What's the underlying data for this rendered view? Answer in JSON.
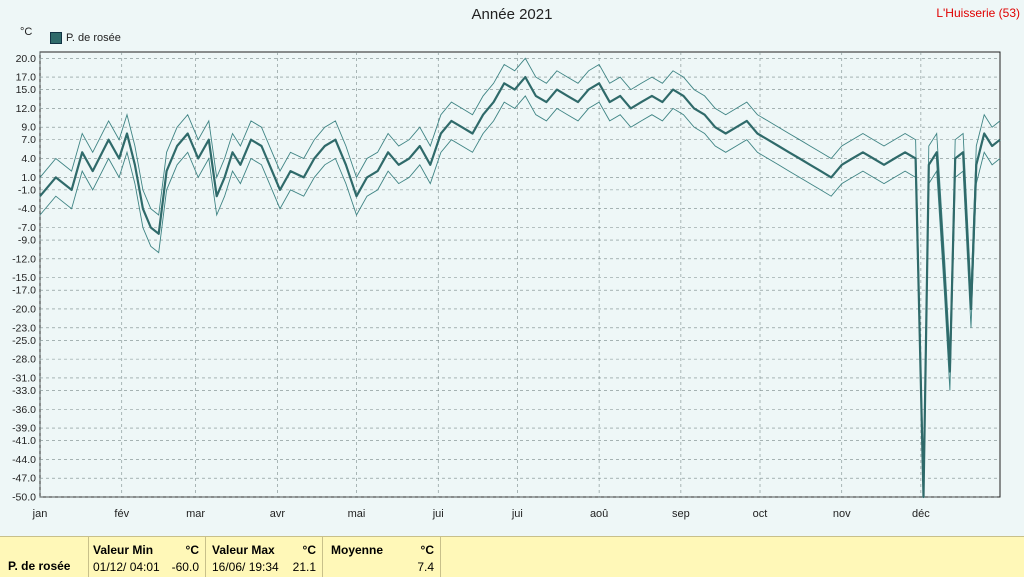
{
  "title": "Année 2021",
  "location": "L'Huisserie (53)",
  "unit": "°C",
  "legend_label": "P. de rosée",
  "colors": {
    "series": "#2f6a6a",
    "envelope": "#3f8484",
    "grid": "#7a8a8a",
    "background": "#eef7f7",
    "footer": "#fff8b8",
    "location": "#e00000"
  },
  "chart_data": {
    "type": "line",
    "title": "Année 2021",
    "ylabel": "°C",
    "yticks": [
      "20.0",
      "17.0",
      "15.0",
      "12.0",
      "9.0",
      "7.0",
      "4.0",
      "1.0",
      "-1.0",
      "-4.0",
      "-7.0",
      "-9.0",
      "-12.0",
      "-15.0",
      "-17.0",
      "-20.0",
      "-23.0",
      "-25.0",
      "-28.0",
      "-31.0",
      "-33.0",
      "-36.0",
      "-39.0",
      "-41.0",
      "-44.0",
      "-47.0",
      "-50.0"
    ],
    "ylim": [
      -50,
      21
    ],
    "xticks": [
      "jan",
      "fév",
      "mar",
      "avr",
      "mai",
      "jui",
      "jui",
      "aoû",
      "sep",
      "oct",
      "nov",
      "déc"
    ],
    "grid": true,
    "series": [
      {
        "name": "P. de rosée",
        "points": [
          [
            0,
            -2
          ],
          [
            6,
            1
          ],
          [
            12,
            -1
          ],
          [
            16,
            5
          ],
          [
            20,
            2
          ],
          [
            26,
            7
          ],
          [
            30,
            4
          ],
          [
            33,
            8
          ],
          [
            36,
            3
          ],
          [
            39,
            -4
          ],
          [
            42,
            -7
          ],
          [
            45,
            -8
          ],
          [
            48,
            2
          ],
          [
            52,
            6
          ],
          [
            56,
            8
          ],
          [
            60,
            4
          ],
          [
            64,
            7
          ],
          [
            67,
            -2
          ],
          [
            70,
            1
          ],
          [
            73,
            5
          ],
          [
            76,
            3
          ],
          [
            80,
            7
          ],
          [
            84,
            6
          ],
          [
            88,
            2
          ],
          [
            91,
            -1
          ],
          [
            95,
            2
          ],
          [
            100,
            1
          ],
          [
            104,
            4
          ],
          [
            108,
            6
          ],
          [
            112,
            7
          ],
          [
            116,
            3
          ],
          [
            120,
            -2
          ],
          [
            124,
            1
          ],
          [
            128,
            2
          ],
          [
            132,
            5
          ],
          [
            136,
            3
          ],
          [
            140,
            4
          ],
          [
            144,
            6
          ],
          [
            148,
            3
          ],
          [
            152,
            8
          ],
          [
            156,
            10
          ],
          [
            160,
            9
          ],
          [
            164,
            8
          ],
          [
            168,
            11
          ],
          [
            172,
            13
          ],
          [
            176,
            16
          ],
          [
            180,
            15
          ],
          [
            184,
            17
          ],
          [
            188,
            14
          ],
          [
            192,
            13
          ],
          [
            196,
            15
          ],
          [
            200,
            14
          ],
          [
            204,
            13
          ],
          [
            208,
            15
          ],
          [
            212,
            16
          ],
          [
            216,
            13
          ],
          [
            220,
            14
          ],
          [
            224,
            12
          ],
          [
            228,
            13
          ],
          [
            232,
            14
          ],
          [
            236,
            13
          ],
          [
            240,
            15
          ],
          [
            244,
            14
          ],
          [
            248,
            12
          ],
          [
            252,
            11
          ],
          [
            256,
            9
          ],
          [
            260,
            8
          ],
          [
            264,
            9
          ],
          [
            268,
            10
          ],
          [
            272,
            8
          ],
          [
            276,
            7
          ],
          [
            280,
            6
          ],
          [
            284,
            5
          ],
          [
            288,
            4
          ],
          [
            292,
            3
          ],
          [
            296,
            2
          ],
          [
            300,
            1
          ],
          [
            304,
            3
          ],
          [
            308,
            4
          ],
          [
            312,
            5
          ],
          [
            316,
            4
          ],
          [
            320,
            3
          ],
          [
            324,
            4
          ],
          [
            328,
            5
          ],
          [
            332,
            4
          ],
          [
            335,
            -50
          ],
          [
            337,
            3
          ],
          [
            340,
            5
          ],
          [
            343,
            -15
          ],
          [
            345,
            -30
          ],
          [
            347,
            4
          ],
          [
            350,
            5
          ],
          [
            353,
            -20
          ],
          [
            355,
            3
          ],
          [
            358,
            8
          ],
          [
            361,
            6
          ],
          [
            364,
            7
          ]
        ]
      }
    ],
    "min_value": -60.0,
    "max_value": 21.1,
    "mean_value": 7.4
  },
  "table": {
    "row_label": "P. de rosée",
    "min_header": "Valeur Min",
    "min_unit": "°C",
    "min_date": "01/12/ 04:01",
    "min_value": "-60.0",
    "max_header": "Valeur Max",
    "max_unit": "°C",
    "max_date": "16/06/ 19:34",
    "max_value": "21.1",
    "mean_header": "Moyenne",
    "mean_unit": "°C",
    "mean_value": "7.4"
  }
}
